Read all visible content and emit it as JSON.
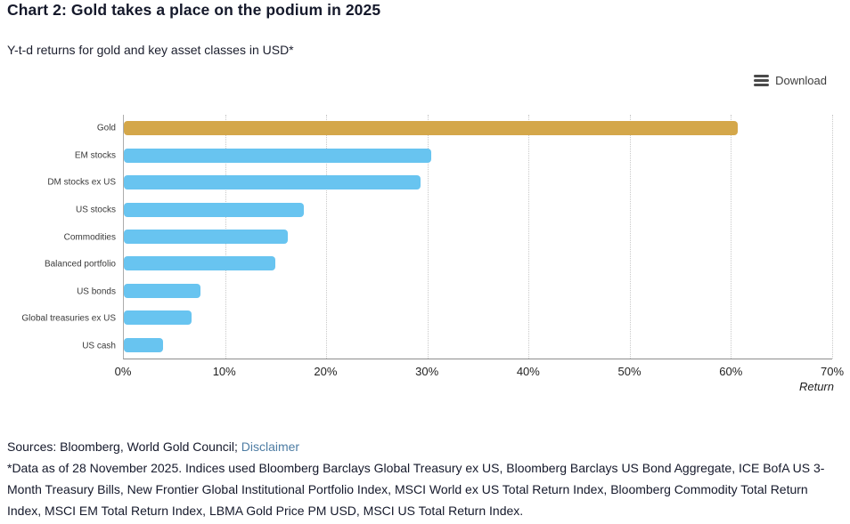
{
  "header": {
    "title": "Chart 2: Gold takes a place on the podium in 2025",
    "subtitle": "Y-t-d returns for gold and key asset classes in USD*"
  },
  "toolbar": {
    "download_label": "Download",
    "menu_icon": "hamburger-icon"
  },
  "chart_data": {
    "type": "bar",
    "orientation": "horizontal",
    "title": "Chart 2: Gold takes a place on the podium in 2025",
    "subtitle": "Y-t-d returns for gold and key asset classes in USD*",
    "categories": [
      "Gold",
      "EM stocks",
      "DM stocks ex US",
      "US stocks",
      "Commodities",
      "Balanced portfolio",
      "US bonds",
      "Global treasuries ex US",
      "US cash"
    ],
    "values": [
      60.7,
      30.4,
      29.3,
      17.8,
      16.2,
      15.0,
      7.6,
      6.7,
      3.9
    ],
    "unit": "%",
    "xlabel": "Return",
    "xlim": [
      0,
      70
    ],
    "x_ticks": [
      "0%",
      "10%",
      "20%",
      "30%",
      "40%",
      "50%",
      "60%",
      "70%"
    ],
    "x_tick_values": [
      0,
      10,
      20,
      30,
      40,
      50,
      60,
      70
    ],
    "grid": "vertical-dotted",
    "legend": "none",
    "bar_colors": {
      "highlight": "#D4A74A",
      "default": "#68C4F0"
    },
    "highlight_category": "Gold"
  },
  "footer": {
    "sources_prefix": "Sources: Bloomberg, World Gold Council; ",
    "disclaimer_link": "Disclaimer",
    "footnote": "*Data as of 28 November 2025. Indices used Bloomberg Barclays Global Treasury ex US, Bloomberg Barclays US Bond Aggregate, ICE BofA US 3-Month Treasury Bills, New Frontier Global Institutional Portfolio Index, MSCI World ex US Total Return Index, Bloomberg Commodity Total Return Index, MSCI EM Total Return Index, LBMA Gold Price PM USD, MSCI US Total Return Index."
  }
}
